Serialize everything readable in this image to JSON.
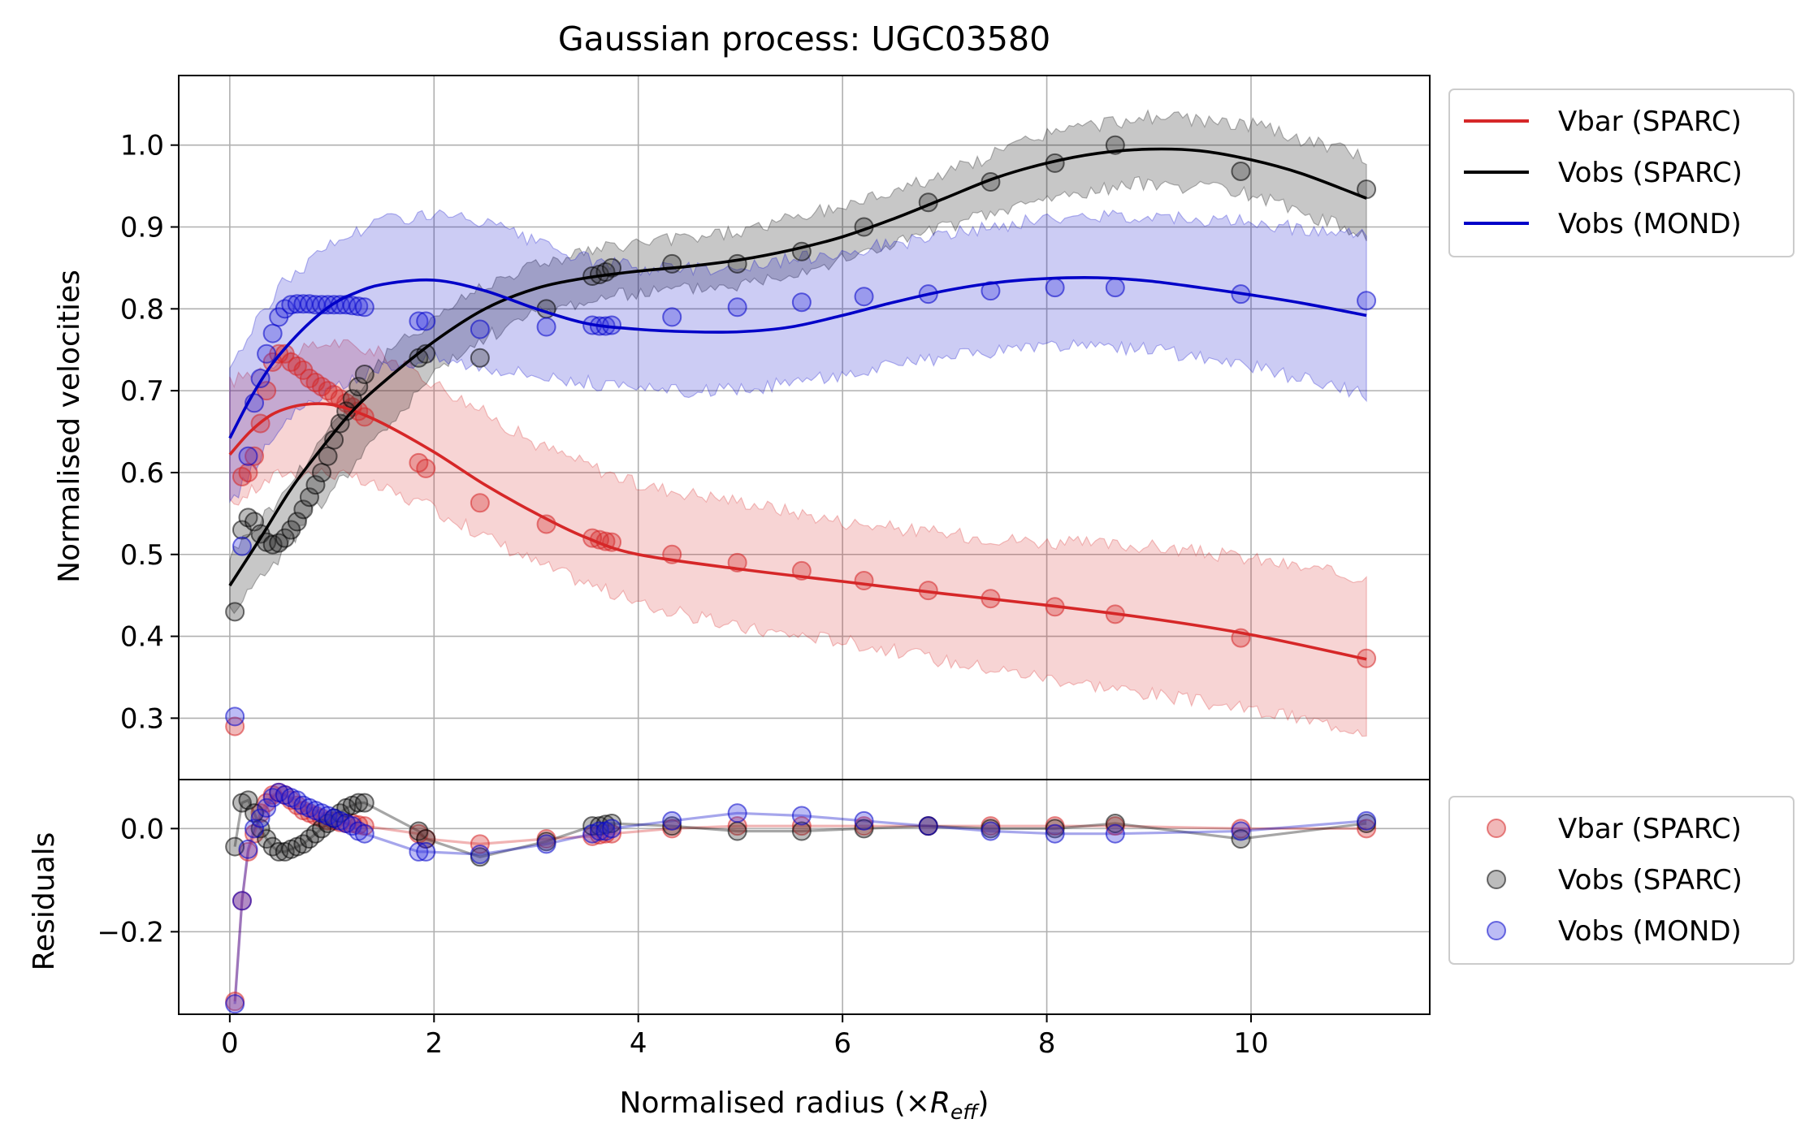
{
  "chart_data": {
    "type": "line",
    "title": "Gaussian process: UGC03580",
    "xlabel_main": "Normalised radius (×",
    "xlabel_sym": "R",
    "xlabel_sub": "eff",
    "xlabel_close": ")",
    "ylabel_top": "Normalised velocities",
    "ylabel_bottom": "Residuals",
    "xlim": [
      -0.5,
      11.75
    ],
    "ylim_top": [
      0.225,
      1.085
    ],
    "ylim_bottom": [
      -0.36,
      0.095
    ],
    "x_ticks": [
      0,
      2,
      4,
      6,
      8,
      10
    ],
    "x_tick_labels": [
      "0",
      "2",
      "4",
      "6",
      "8",
      "10"
    ],
    "y_ticks_top": [
      0.3,
      0.4,
      0.5,
      0.6,
      0.7,
      0.8,
      0.9,
      1.0
    ],
    "y_tick_labels_top": [
      "0.3",
      "0.4",
      "0.5",
      "0.6",
      "0.7",
      "0.8",
      "0.9",
      "1.0"
    ],
    "y_ticks_bottom": [
      -0.2,
      0.0
    ],
    "y_tick_labels_bottom": [
      "−0.2",
      "0.0"
    ],
    "grid": true,
    "legend_top": {
      "placement": "outside upper right",
      "entries": [
        "Vbar (SPARC)",
        "Vobs (SPARC)",
        "Vobs (MOND)"
      ]
    },
    "legend_bottom": {
      "placement": "outside right",
      "entries": [
        "Vbar (SPARC)",
        "Vobs (SPARC)",
        "Vobs (MOND)"
      ]
    },
    "series": [
      {
        "name": "Vbar (SPARC)",
        "color": "#d62728",
        "line": {
          "x": [
            0.0,
            0.2,
            0.4,
            0.6,
            0.8,
            1.0,
            1.2,
            1.5,
            2.0,
            2.5,
            3.0,
            3.5,
            4.0,
            5.0,
            6.0,
            7.0,
            8.0,
            9.0,
            10.0,
            11.13
          ],
          "y": [
            0.622,
            0.65,
            0.67,
            0.68,
            0.684,
            0.683,
            0.676,
            0.66,
            0.625,
            0.585,
            0.55,
            0.52,
            0.5,
            0.482,
            0.467,
            0.452,
            0.438,
            0.422,
            0.402,
            0.372
          ]
        },
        "band": {
          "x": [
            0.0,
            0.5,
            1.0,
            1.5,
            2.0,
            3.0,
            4.0,
            5.0,
            6.0,
            7.0,
            8.0,
            9.0,
            10.0,
            11.13
          ],
          "lower": [
            0.56,
            0.6,
            0.6,
            0.58,
            0.555,
            0.49,
            0.44,
            0.41,
            0.395,
            0.37,
            0.35,
            0.33,
            0.31,
            0.285
          ],
          "upper": [
            0.71,
            0.74,
            0.76,
            0.745,
            0.71,
            0.635,
            0.585,
            0.565,
            0.54,
            0.525,
            0.515,
            0.51,
            0.495,
            0.47
          ]
        },
        "points": {
          "x": [
            0.05,
            0.12,
            0.18,
            0.24,
            0.3,
            0.36,
            0.42,
            0.48,
            0.54,
            0.6,
            0.66,
            0.72,
            0.78,
            0.84,
            0.9,
            0.96,
            1.02,
            1.08,
            1.14,
            1.2,
            1.26,
            1.32,
            1.85,
            1.92,
            2.45,
            3.1,
            3.55,
            3.62,
            3.68,
            3.74,
            4.33,
            4.97,
            5.6,
            6.21,
            6.84,
            7.45,
            8.08,
            8.67,
            9.9,
            11.13
          ],
          "y": [
            0.29,
            0.595,
            0.6,
            0.62,
            0.66,
            0.7,
            0.735,
            0.745,
            0.745,
            0.735,
            0.73,
            0.725,
            0.715,
            0.71,
            0.705,
            0.7,
            0.695,
            0.69,
            0.685,
            0.68,
            0.675,
            0.668,
            0.612,
            0.605,
            0.563,
            0.537,
            0.52,
            0.518,
            0.516,
            0.515,
            0.5,
            0.49,
            0.48,
            0.468,
            0.456,
            0.446,
            0.436,
            0.427,
            0.398,
            0.373
          ]
        },
        "residuals": {
          "x": [
            0.05,
            0.12,
            0.18,
            0.24,
            0.3,
            0.36,
            0.42,
            0.48,
            0.54,
            0.6,
            0.66,
            0.72,
            0.78,
            0.84,
            0.9,
            0.96,
            1.02,
            1.08,
            1.14,
            1.2,
            1.26,
            1.32,
            1.85,
            1.92,
            2.45,
            3.1,
            3.55,
            3.62,
            3.68,
            3.74,
            4.33,
            4.97,
            5.6,
            6.21,
            6.84,
            7.45,
            8.08,
            8.67,
            9.9,
            11.13
          ],
          "y": [
            -0.335,
            -0.14,
            -0.045,
            -0.01,
            0.03,
            0.05,
            0.065,
            0.07,
            0.065,
            0.055,
            0.045,
            0.035,
            0.03,
            0.025,
            0.02,
            0.015,
            0.015,
            0.012,
            0.01,
            0.01,
            0.007,
            0.005,
            -0.01,
            -0.02,
            -0.03,
            -0.02,
            -0.015,
            -0.012,
            -0.01,
            -0.01,
            0.0,
            0.005,
            0.005,
            0.005,
            0.005,
            0.005,
            0.005,
            0.005,
            0.0,
            0.0
          ]
        }
      },
      {
        "name": "Vobs (SPARC)",
        "color": "#000000",
        "line": {
          "x": [
            0.0,
            0.3,
            0.6,
            0.9,
            1.2,
            1.5,
            2.0,
            2.5,
            3.0,
            3.5,
            4.0,
            4.5,
            5.0,
            5.5,
            6.0,
            6.5,
            7.0,
            7.5,
            8.0,
            8.5,
            9.0,
            9.5,
            10.0,
            10.5,
            11.13
          ],
          "y": [
            0.462,
            0.52,
            0.58,
            0.63,
            0.675,
            0.71,
            0.76,
            0.8,
            0.825,
            0.838,
            0.846,
            0.852,
            0.86,
            0.872,
            0.888,
            0.91,
            0.935,
            0.96,
            0.978,
            0.99,
            0.995,
            0.993,
            0.982,
            0.965,
            0.935
          ]
        },
        "band": {
          "x": [
            0.0,
            0.5,
            1.0,
            1.5,
            2.0,
            2.5,
            3.0,
            3.5,
            4.0,
            5.0,
            6.0,
            7.0,
            8.0,
            9.0,
            10.0,
            11.13
          ],
          "lower": [
            0.43,
            0.5,
            0.58,
            0.65,
            0.72,
            0.765,
            0.795,
            0.81,
            0.82,
            0.83,
            0.86,
            0.9,
            0.935,
            0.955,
            0.94,
            0.89
          ],
          "upper": [
            0.5,
            0.57,
            0.66,
            0.74,
            0.79,
            0.83,
            0.855,
            0.87,
            0.88,
            0.895,
            0.925,
            0.965,
            1.015,
            1.035,
            1.025,
            0.985
          ]
        },
        "points": {
          "x": [
            0.05,
            0.12,
            0.18,
            0.24,
            0.3,
            0.36,
            0.42,
            0.48,
            0.54,
            0.6,
            0.66,
            0.72,
            0.78,
            0.84,
            0.9,
            0.96,
            1.02,
            1.08,
            1.14,
            1.2,
            1.26,
            1.32,
            1.85,
            1.92,
            2.45,
            3.1,
            3.55,
            3.62,
            3.68,
            3.74,
            4.33,
            4.97,
            5.6,
            6.21,
            6.84,
            7.45,
            8.08,
            8.67,
            9.9,
            11.13
          ],
          "y": [
            0.43,
            0.53,
            0.545,
            0.54,
            0.525,
            0.515,
            0.512,
            0.514,
            0.52,
            0.53,
            0.54,
            0.555,
            0.57,
            0.585,
            0.6,
            0.62,
            0.64,
            0.66,
            0.675,
            0.69,
            0.705,
            0.72,
            0.74,
            0.745,
            0.74,
            0.8,
            0.84,
            0.842,
            0.845,
            0.85,
            0.855,
            0.855,
            0.87,
            0.9,
            0.93,
            0.955,
            0.978,
            1.0,
            0.968,
            0.946
          ]
        },
        "residuals": {
          "x": [
            0.05,
            0.12,
            0.18,
            0.24,
            0.3,
            0.36,
            0.42,
            0.48,
            0.54,
            0.6,
            0.66,
            0.72,
            0.78,
            0.84,
            0.9,
            0.96,
            1.02,
            1.08,
            1.14,
            1.2,
            1.26,
            1.32,
            1.85,
            1.92,
            2.45,
            3.1,
            3.55,
            3.62,
            3.68,
            3.74,
            4.33,
            4.97,
            5.6,
            6.21,
            6.84,
            7.45,
            8.08,
            8.67,
            9.9,
            11.13
          ],
          "y": [
            -0.035,
            0.05,
            0.055,
            0.03,
            0.0,
            -0.02,
            -0.035,
            -0.045,
            -0.045,
            -0.04,
            -0.035,
            -0.03,
            -0.02,
            -0.01,
            0.0,
            0.01,
            0.02,
            0.03,
            0.04,
            0.045,
            0.05,
            0.05,
            -0.005,
            -0.02,
            -0.055,
            -0.025,
            0.005,
            0.005,
            0.008,
            0.01,
            0.005,
            -0.005,
            -0.005,
            0.0,
            0.005,
            0.0,
            0.0,
            0.01,
            -0.02,
            0.01
          ]
        }
      },
      {
        "name": "Vobs (MOND)",
        "color": "#0000c8",
        "line": {
          "x": [
            0.0,
            0.2,
            0.4,
            0.6,
            0.8,
            1.0,
            1.2,
            1.5,
            2.0,
            2.5,
            3.0,
            3.5,
            4.0,
            4.5,
            5.0,
            5.5,
            6.0,
            6.5,
            7.0,
            7.5,
            8.0,
            8.5,
            9.0,
            9.5,
            10.0,
            10.5,
            11.13
          ],
          "y": [
            0.642,
            0.69,
            0.73,
            0.76,
            0.785,
            0.805,
            0.818,
            0.83,
            0.835,
            0.822,
            0.8,
            0.782,
            0.775,
            0.772,
            0.772,
            0.778,
            0.792,
            0.808,
            0.822,
            0.832,
            0.837,
            0.838,
            0.834,
            0.826,
            0.817,
            0.807,
            0.792
          ]
        },
        "band": {
          "x": [
            0.0,
            0.5,
            1.0,
            1.5,
            2.0,
            2.5,
            3.0,
            3.5,
            4.0,
            5.0,
            6.0,
            7.0,
            8.0,
            9.0,
            10.0,
            11.13
          ],
          "lower": [
            0.56,
            0.66,
            0.7,
            0.73,
            0.74,
            0.73,
            0.72,
            0.71,
            0.7,
            0.7,
            0.72,
            0.74,
            0.755,
            0.75,
            0.73,
            0.695
          ],
          "upper": [
            0.73,
            0.83,
            0.88,
            0.91,
            0.915,
            0.905,
            0.88,
            0.86,
            0.85,
            0.85,
            0.87,
            0.89,
            0.91,
            0.915,
            0.905,
            0.89
          ]
        },
        "points": {
          "x": [
            0.05,
            0.12,
            0.18,
            0.24,
            0.3,
            0.36,
            0.42,
            0.48,
            0.54,
            0.6,
            0.66,
            0.72,
            0.78,
            0.84,
            0.9,
            0.96,
            1.02,
            1.08,
            1.14,
            1.2,
            1.26,
            1.32,
            1.85,
            1.92,
            2.45,
            3.1,
            3.55,
            3.62,
            3.68,
            3.74,
            4.33,
            4.97,
            5.6,
            6.21,
            6.84,
            7.45,
            8.08,
            8.67,
            9.9,
            11.13
          ],
          "y": [
            0.302,
            0.51,
            0.62,
            0.685,
            0.715,
            0.745,
            0.77,
            0.79,
            0.8,
            0.805,
            0.806,
            0.806,
            0.806,
            0.805,
            0.805,
            0.805,
            0.805,
            0.805,
            0.805,
            0.804,
            0.803,
            0.802,
            0.785,
            0.785,
            0.775,
            0.778,
            0.78,
            0.779,
            0.779,
            0.78,
            0.79,
            0.802,
            0.808,
            0.815,
            0.818,
            0.822,
            0.826,
            0.826,
            0.818,
            0.81
          ]
        },
        "residuals": {
          "x": [
            0.05,
            0.12,
            0.18,
            0.24,
            0.3,
            0.36,
            0.42,
            0.48,
            0.54,
            0.6,
            0.66,
            0.72,
            0.78,
            0.84,
            0.9,
            0.96,
            1.02,
            1.08,
            1.14,
            1.2,
            1.26,
            1.32,
            1.85,
            1.92,
            2.45,
            3.1,
            3.55,
            3.62,
            3.68,
            3.74,
            4.33,
            4.97,
            5.6,
            6.21,
            6.84,
            7.45,
            8.08,
            8.67,
            9.9,
            11.13
          ],
          "y": [
            -0.34,
            -0.14,
            -0.04,
            0.0,
            0.02,
            0.04,
            0.06,
            0.07,
            0.065,
            0.06,
            0.055,
            0.045,
            0.04,
            0.035,
            0.03,
            0.025,
            0.02,
            0.015,
            0.01,
            0.005,
            -0.005,
            -0.01,
            -0.045,
            -0.045,
            -0.05,
            -0.03,
            -0.01,
            -0.005,
            -0.005,
            0.0,
            0.015,
            0.03,
            0.025,
            0.015,
            0.005,
            -0.005,
            -0.01,
            -0.01,
            -0.005,
            0.015
          ]
        }
      }
    ]
  }
}
